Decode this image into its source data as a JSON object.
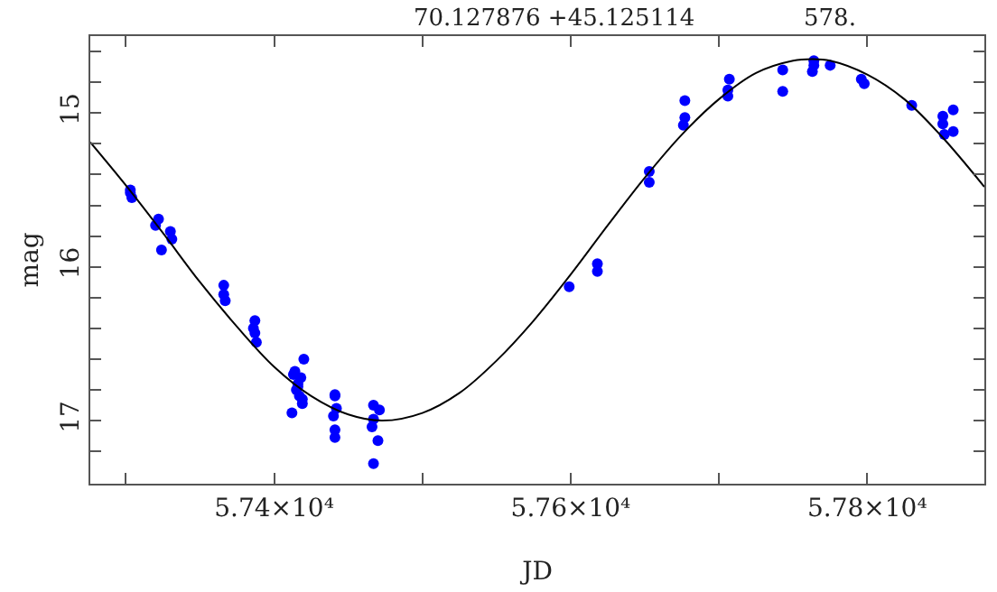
{
  "chart_data": {
    "type": "scatter",
    "xlabel": "JD",
    "ylabel": "mag",
    "annotations": [
      "70.127876 +45.125114",
      "578."
    ],
    "xlim": [
      57276,
      57879
    ],
    "xticks": [
      {
        "value": 57300,
        "label": null
      },
      {
        "value": 57400,
        "label": "5.74×10⁴"
      },
      {
        "value": 57500,
        "label": null
      },
      {
        "value": 57600,
        "label": "5.76×10⁴"
      },
      {
        "value": 57700,
        "label": null
      },
      {
        "value": 57800,
        "label": "5.78×10⁴"
      }
    ],
    "ylim": [
      17.41,
      14.5
    ],
    "yticks": [
      {
        "value": 14.6,
        "label": null
      },
      {
        "value": 14.8,
        "label": null
      },
      15,
      {
        "value": 15.2,
        "label": null
      },
      {
        "value": 15.4,
        "label": null
      },
      {
        "value": 15.6,
        "label": null
      },
      {
        "value": 15.8,
        "label": null
      },
      16,
      {
        "value": 16.2,
        "label": null
      },
      {
        "value": 16.4,
        "label": null
      },
      {
        "value": 16.6,
        "label": null
      },
      {
        "value": 16.8,
        "label": null
      },
      17,
      {
        "value": 17.2,
        "label": null
      },
      {
        "value": 17.4,
        "label": null
      }
    ],
    "grid": false,
    "legend": false,
    "marker": "circle",
    "series": [
      {
        "color": "#0000ff",
        "x": [
          57303,
          57303,
          57304,
          57322,
          57324,
          57330,
          57331,
          57320,
          57366,
          57366,
          57367,
          57387,
          57387,
          57388,
          57386,
          57416,
          57414,
          57418,
          57415,
          57417,
          57419,
          57413,
          57420,
          57416,
          57419,
          57412,
          57441,
          57441,
          57442,
          57440,
          57441,
          57441,
          57467,
          57467,
          57470,
          57467,
          57466,
          57471,
          57599,
          57618,
          57618,
          57653,
          57653,
          57677,
          57677,
          57676,
          57706,
          57706,
          57707,
          57743,
          57743,
          57764,
          57764,
          57763,
          57775,
          57796,
          57798,
          57830,
          57851,
          57851,
          57852,
          57858,
          57858
        ],
        "values": [
          15.5,
          15.52,
          15.55,
          15.69,
          15.89,
          15.77,
          15.82,
          15.73,
          16.12,
          16.18,
          16.22,
          16.35,
          16.43,
          16.49,
          16.4,
          16.76,
          16.68,
          16.72,
          16.8,
          16.84,
          16.89,
          16.7,
          16.6,
          16.78,
          16.86,
          16.95,
          16.84,
          16.83,
          16.92,
          16.97,
          17.06,
          17.11,
          16.9,
          16.99,
          17.13,
          17.28,
          17.04,
          16.93,
          16.13,
          15.98,
          16.03,
          15.38,
          15.45,
          14.92,
          15.03,
          15.08,
          14.89,
          14.85,
          14.78,
          14.72,
          14.86,
          14.66,
          14.69,
          14.73,
          14.69,
          14.78,
          14.81,
          14.95,
          15.02,
          15.07,
          15.14,
          14.98,
          15.12
        ]
      },
      {
        "type": "line",
        "color": "#000000",
        "marker": "none",
        "line_style": "solid",
        "x": [
          57276,
          57300,
          57325,
          57350,
          57375,
          57400,
          57425,
          57450,
          57473,
          57500,
          57525,
          57550,
          57575,
          57600,
          57625,
          57650,
          57675,
          57700,
          57725,
          57750,
          57763,
          57775,
          57800,
          57825,
          57850,
          57879
        ],
        "values": [
          15.19,
          15.47,
          15.78,
          16.1,
          16.39,
          16.65,
          16.84,
          16.96,
          17.0,
          16.95,
          16.82,
          16.61,
          16.35,
          16.05,
          15.73,
          15.42,
          15.14,
          14.91,
          14.74,
          14.66,
          14.65,
          14.66,
          14.75,
          14.91,
          15.15,
          15.48
        ]
      }
    ]
  }
}
